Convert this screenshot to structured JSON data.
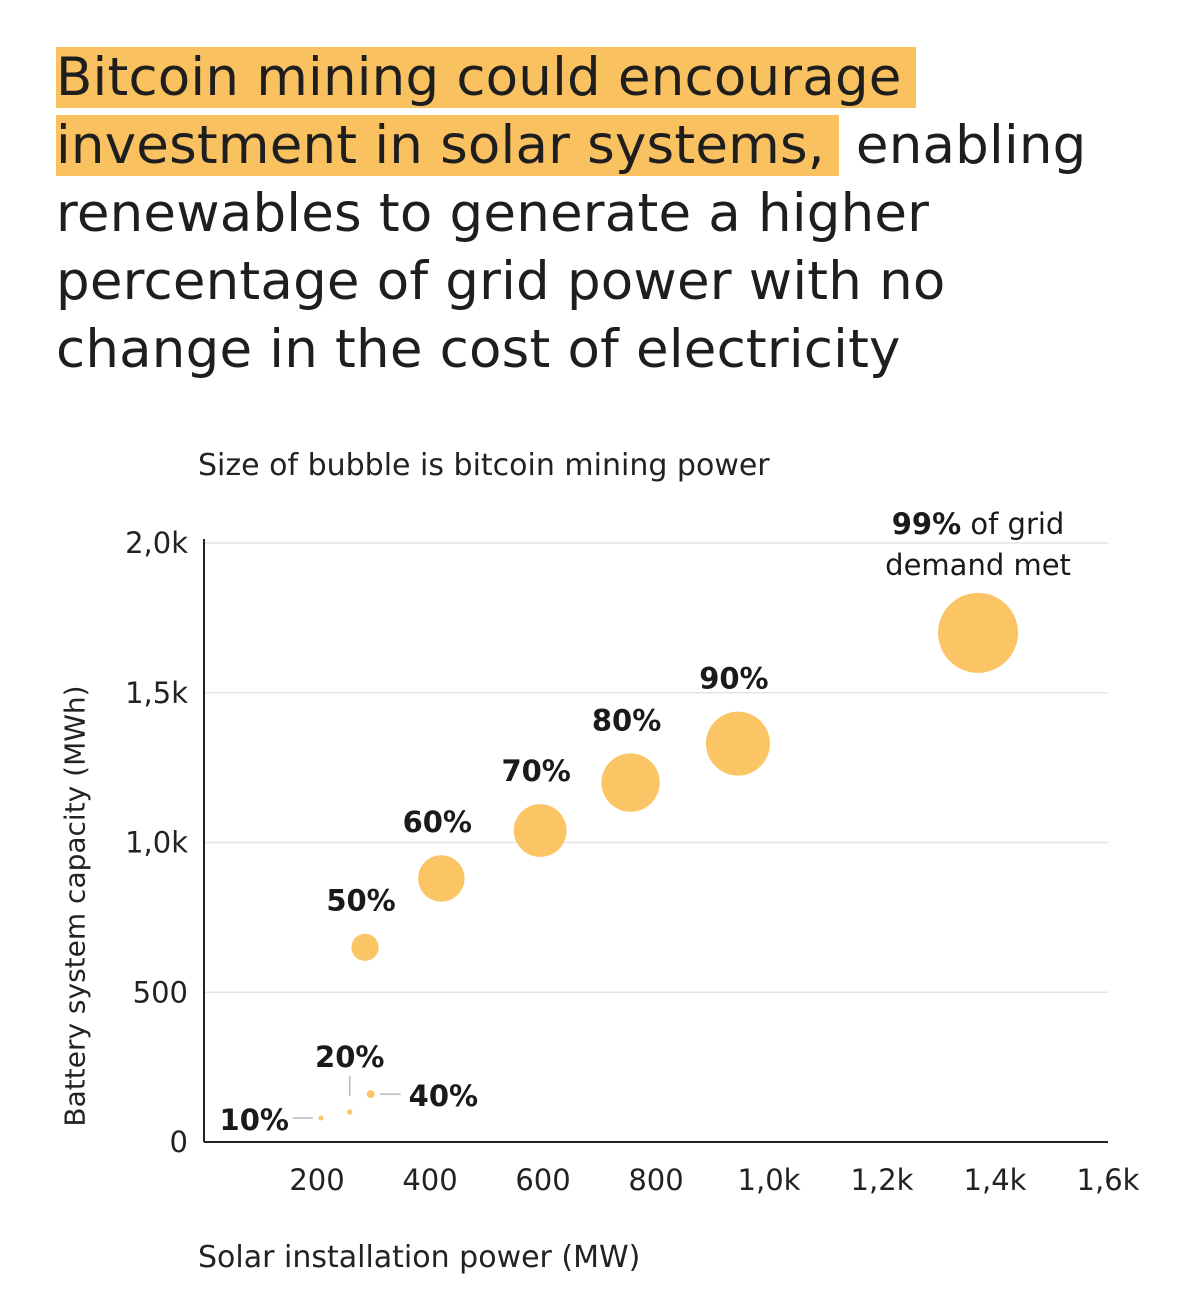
{
  "headline": {
    "highlighted_1": "Bitcoin mining could encourage",
    "highlighted_2": "investment in solar systems,",
    "rest": " enabling renewables to generate a higher percentage of grid power with no change in the cost of electricity"
  },
  "colors": {
    "highlight": "#f9c15f",
    "bubble": "#fbc565",
    "grid": "#e4e4e4",
    "axis": "#222222"
  },
  "chart_data": {
    "type": "scatter",
    "subtitle": "Size of bubble is bitcoin mining power",
    "xlabel": "Solar installation power (MW)",
    "ylabel": "Battery system capacity (MWh)",
    "xlim": [
      0,
      1600
    ],
    "ylim": [
      0,
      2000
    ],
    "x_ticks": [
      {
        "value": 200,
        "label": "200"
      },
      {
        "value": 400,
        "label": "400"
      },
      {
        "value": 600,
        "label": "600"
      },
      {
        "value": 800,
        "label": "800"
      },
      {
        "value": 1000,
        "label": "1,0k"
      },
      {
        "value": 1200,
        "label": "1,2k"
      },
      {
        "value": 1400,
        "label": "1,4k"
      },
      {
        "value": 1600,
        "label": "1,6k"
      }
    ],
    "y_ticks": [
      {
        "value": 0,
        "label": "0"
      },
      {
        "value": 500,
        "label": "500"
      },
      {
        "value": 1000,
        "label": "1,0k"
      },
      {
        "value": 1500,
        "label": "1,5k"
      },
      {
        "value": 2000,
        "label": "2,0k"
      }
    ],
    "grid": true,
    "points": [
      {
        "label": "10%",
        "x": 207,
        "y": 80,
        "size": 0.06
      },
      {
        "label": "20%",
        "x": 258,
        "y": 100,
        "size": 0.07
      },
      {
        "label": "40%",
        "x": 295,
        "y": 160,
        "size": 0.1
      },
      {
        "label": "50%",
        "x": 285,
        "y": 650,
        "size": 0.34
      },
      {
        "label": "60%",
        "x": 420,
        "y": 880,
        "size": 0.58
      },
      {
        "label": "70%",
        "x": 595,
        "y": 1040,
        "size": 0.66
      },
      {
        "label": "80%",
        "x": 755,
        "y": 1200,
        "size": 0.73
      },
      {
        "label": "90%",
        "x": 945,
        "y": 1330,
        "size": 0.8
      },
      {
        "label": "99%",
        "label_suffix_1": " of grid",
        "label_line_2": "demand met",
        "x": 1370,
        "y": 1700,
        "size": 1.0
      }
    ]
  }
}
